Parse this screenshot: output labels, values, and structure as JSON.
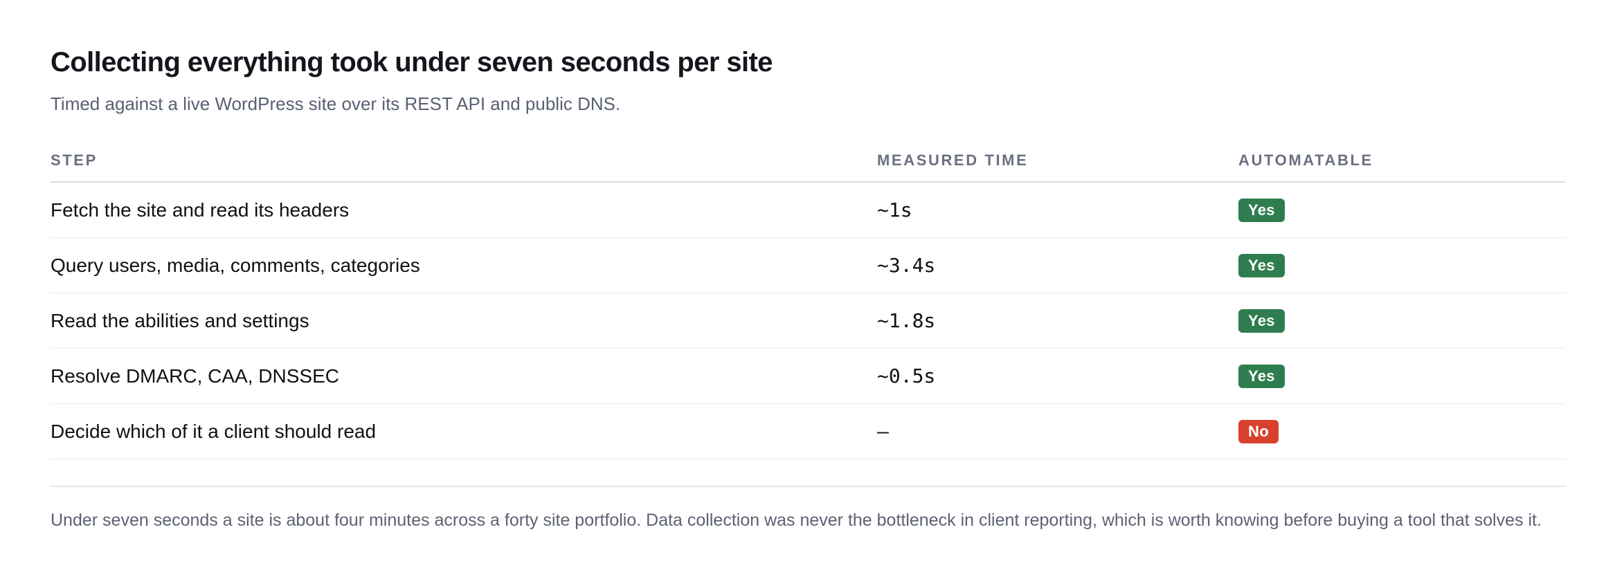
{
  "section": {
    "title": "Collecting everything took under seven seconds per site",
    "subtitle": "Timed against a live WordPress site over its REST API and public DNS."
  },
  "table": {
    "headers": {
      "step": "STEP",
      "time": "MEASURED TIME",
      "automatable": "AUTOMATABLE"
    },
    "rows": [
      {
        "step": "Fetch the site and read its headers",
        "time": "~1s",
        "automatable": "Yes"
      },
      {
        "step": "Query users, media, comments, categories",
        "time": "~3.4s",
        "automatable": "Yes"
      },
      {
        "step": "Read the abilities and settings",
        "time": "~1.8s",
        "automatable": "Yes"
      },
      {
        "step": "Resolve DMARC, CAA, DNSSEC",
        "time": "~0.5s",
        "automatable": "Yes"
      },
      {
        "step": "Decide which of it a client should read",
        "time": "—",
        "automatable": "No"
      }
    ]
  },
  "colors": {
    "badge_yes": "#2e7d4f",
    "badge_no": "#d9412f"
  },
  "footnote": "Under seven seconds a site is about four minutes across a forty site portfolio. Data collection was never the bottleneck in client reporting, which is worth knowing before buying a tool that solves it."
}
